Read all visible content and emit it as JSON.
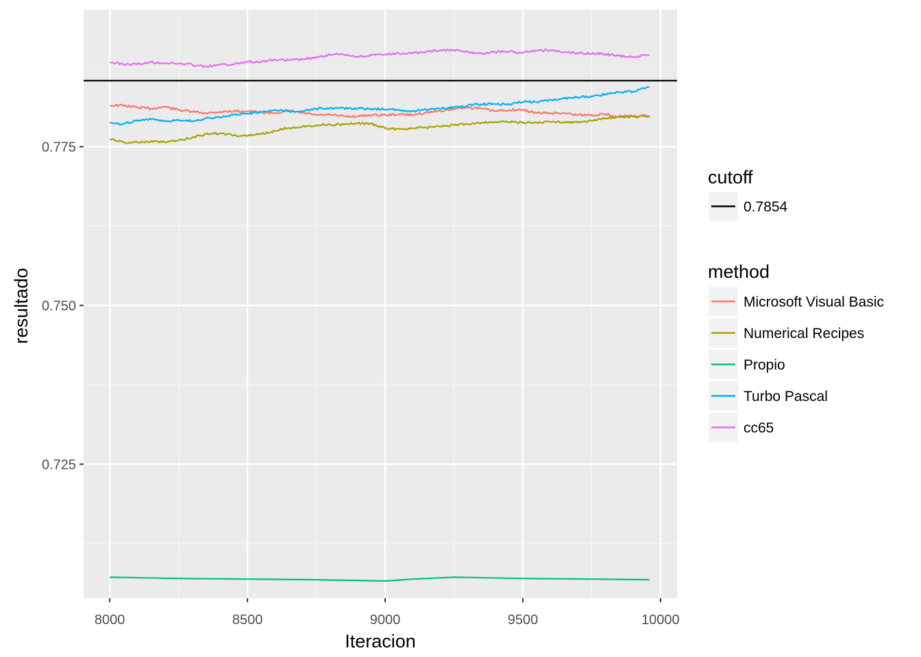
{
  "chart_data": {
    "type": "line",
    "xlabel": "Iteracion",
    "ylabel": "resultado",
    "xlim": [
      7905,
      10060
    ],
    "ylim": [
      0.7039,
      0.7966
    ],
    "x_ticks": [
      8000,
      8500,
      9000,
      9500,
      10000
    ],
    "x_tick_labels": [
      "8000",
      "8500",
      "9000",
      "9500",
      "10000"
    ],
    "y_ticks": [
      0.725,
      0.75,
      0.775
    ],
    "y_tick_labels": [
      "0.725",
      "0.750",
      "0.775"
    ],
    "grid": true,
    "legend_placement": "right",
    "reference_line": {
      "legend_title": "cutoff",
      "label": "0.7854",
      "value": 0.7854,
      "color": "#000000"
    },
    "legend_title": "method",
    "series": [
      {
        "name": "Microsoft Visual Basic",
        "color": "#F8766D",
        "x": [
          8000,
          8050,
          8100,
          8150,
          8200,
          8250,
          8300,
          8350,
          8400,
          8450,
          8500,
          8550,
          8600,
          8650,
          8700,
          8750,
          8800,
          8850,
          8900,
          8950,
          9000,
          9050,
          9100,
          9150,
          9200,
          9250,
          9300,
          9350,
          9400,
          9450,
          9500,
          9550,
          9600,
          9650,
          9700,
          9750,
          9800,
          9850,
          9900,
          9960
        ],
        "values": [
          0.7815,
          0.7815,
          0.7812,
          0.781,
          0.7813,
          0.7808,
          0.7805,
          0.7803,
          0.7805,
          0.7806,
          0.7806,
          0.7804,
          0.7803,
          0.7807,
          0.7803,
          0.78,
          0.78,
          0.7798,
          0.7798,
          0.78,
          0.78,
          0.7801,
          0.78,
          0.7804,
          0.7806,
          0.781,
          0.7812,
          0.781,
          0.7806,
          0.7808,
          0.7808,
          0.7803,
          0.7803,
          0.7803,
          0.78,
          0.78,
          0.7801,
          0.7798,
          0.7798,
          0.7799
        ]
      },
      {
        "name": "Numerical Recipes",
        "color": "#A3A500",
        "x": [
          8000,
          8050,
          8100,
          8150,
          8200,
          8250,
          8300,
          8350,
          8400,
          8450,
          8500,
          8550,
          8600,
          8650,
          8700,
          8750,
          8800,
          8850,
          8900,
          8950,
          9000,
          9050,
          9100,
          9150,
          9200,
          9250,
          9300,
          9350,
          9400,
          9450,
          9500,
          9550,
          9600,
          9650,
          9700,
          9750,
          9800,
          9850,
          9900,
          9960
        ],
        "values": [
          0.7762,
          0.7757,
          0.7757,
          0.7759,
          0.7757,
          0.776,
          0.7765,
          0.777,
          0.7771,
          0.7768,
          0.7767,
          0.777,
          0.7775,
          0.778,
          0.7782,
          0.7784,
          0.7785,
          0.7785,
          0.7787,
          0.7786,
          0.7779,
          0.7778,
          0.7779,
          0.778,
          0.7782,
          0.7784,
          0.7786,
          0.7788,
          0.7789,
          0.7789,
          0.7788,
          0.7788,
          0.7789,
          0.7789,
          0.7788,
          0.7791,
          0.7795,
          0.7797,
          0.7797,
          0.7798
        ]
      },
      {
        "name": "Propio",
        "color": "#00BF7D",
        "x": [
          8000,
          8250,
          8500,
          8750,
          9000,
          9100,
          9250,
          9500,
          9750,
          9960
        ],
        "values": [
          0.7072,
          0.707,
          0.7069,
          0.7068,
          0.7066,
          0.7069,
          0.7072,
          0.707,
          0.7069,
          0.7068
        ]
      },
      {
        "name": "Turbo Pascal",
        "color": "#00B0F6",
        "x": [
          8000,
          8050,
          8100,
          8150,
          8200,
          8250,
          8300,
          8350,
          8400,
          8450,
          8500,
          8550,
          8600,
          8650,
          8700,
          8750,
          8800,
          8850,
          8900,
          8950,
          9000,
          9050,
          9100,
          9150,
          9200,
          9250,
          9300,
          9350,
          9400,
          9450,
          9500,
          9550,
          9600,
          9650,
          9700,
          9750,
          9800,
          9850,
          9900,
          9960
        ],
        "values": [
          0.7788,
          0.7786,
          0.7792,
          0.7793,
          0.779,
          0.7792,
          0.779,
          0.7795,
          0.7796,
          0.7801,
          0.7802,
          0.7805,
          0.7808,
          0.7806,
          0.7806,
          0.781,
          0.7811,
          0.7811,
          0.781,
          0.781,
          0.7809,
          0.7808,
          0.7806,
          0.7808,
          0.781,
          0.7812,
          0.7815,
          0.7817,
          0.7817,
          0.7816,
          0.7821,
          0.782,
          0.7824,
          0.7826,
          0.7828,
          0.7829,
          0.7833,
          0.7836,
          0.7837,
          0.7844
        ]
      },
      {
        "name": "cc65",
        "color": "#E76BF3",
        "x": [
          8000,
          8050,
          8100,
          8150,
          8200,
          8250,
          8300,
          8350,
          8400,
          8450,
          8500,
          8550,
          8600,
          8650,
          8700,
          8750,
          8800,
          8850,
          8900,
          8950,
          9000,
          9050,
          9100,
          9150,
          9200,
          9250,
          9300,
          9350,
          9400,
          9450,
          9500,
          9550,
          9600,
          9650,
          9700,
          9750,
          9800,
          9850,
          9900,
          9960
        ],
        "values": [
          0.7883,
          0.788,
          0.788,
          0.7883,
          0.7882,
          0.7881,
          0.7879,
          0.7876,
          0.7879,
          0.788,
          0.7884,
          0.7884,
          0.7887,
          0.7886,
          0.7888,
          0.789,
          0.7895,
          0.7895,
          0.7892,
          0.7894,
          0.7895,
          0.7897,
          0.7897,
          0.79,
          0.7902,
          0.7902,
          0.7899,
          0.7897,
          0.7899,
          0.79,
          0.7898,
          0.7901,
          0.7902,
          0.7899,
          0.7898,
          0.7897,
          0.7896,
          0.7893,
          0.7892,
          0.7894
        ]
      }
    ]
  }
}
